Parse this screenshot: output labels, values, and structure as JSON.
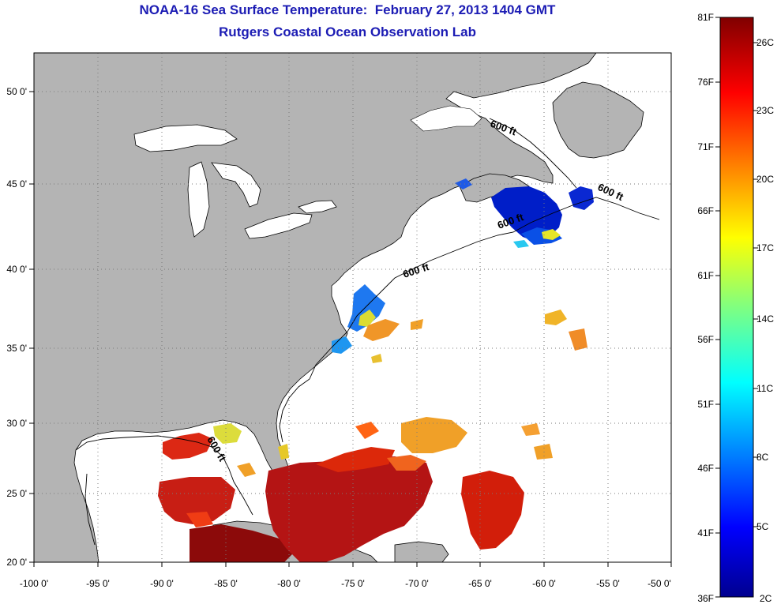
{
  "header": {
    "title": "NOAA-16 Sea Surface Temperature:  February 27, 2013 1404 GMT",
    "subtitle": "Rutgers Coastal Ocean Observation Lab"
  },
  "map": {
    "x_ticks": [
      "-100 0'",
      "-95 0'",
      "-90 0'",
      "-85 0'",
      "-80 0'",
      "-75 0'",
      "-70 0'",
      "-65 0'",
      "-60 0'",
      "-55 0'",
      "-50 0'"
    ],
    "y_ticks": [
      "50 0'",
      "45 0'",
      "40 0'",
      "35 0'",
      "30 0'",
      "25 0'",
      "20 0'"
    ],
    "contour_labels": [
      "600 ft",
      "600 ft",
      "600 ft",
      "600 ft",
      "600 ft"
    ],
    "colors": {
      "land": "#b4b4b4",
      "ocean": "#ffffff",
      "grid": "#7a7a7a"
    }
  },
  "colorbar": {
    "fahrenheit": [
      "81F",
      "76F",
      "71F",
      "66F",
      "61F",
      "56F",
      "51F",
      "46F",
      "41F",
      "36F"
    ],
    "celsius": [
      "26C",
      "23C",
      "20C",
      "17C",
      "14C",
      "11C",
      "8C",
      "5C",
      "2C"
    ],
    "colormap": "jet"
  }
}
